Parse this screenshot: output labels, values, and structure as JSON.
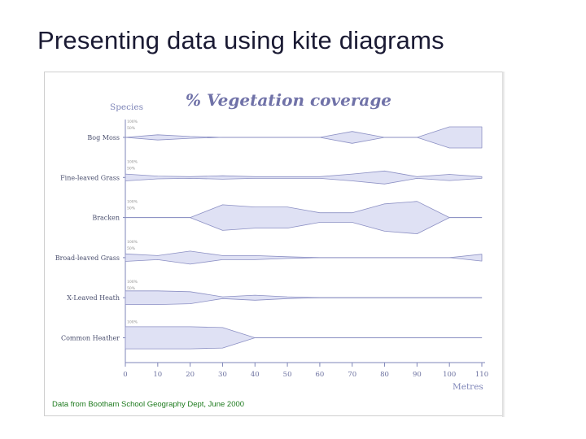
{
  "slide": {
    "title": "Presenting data using kite diagrams",
    "footnote": "Data from Bootham School Geography Dept, June 2000"
  },
  "chart_data": {
    "type": "kite",
    "title": "% Vegetation coverage",
    "ylabel": "Species",
    "xlabel": "Metres",
    "xlim": [
      0,
      110
    ],
    "x": [
      0,
      10,
      20,
      30,
      40,
      50,
      60,
      70,
      80,
      90,
      100,
      110
    ],
    "xticks": [
      "0",
      "10",
      "20",
      "30",
      "40",
      "50",
      "60",
      "70",
      "80",
      "90",
      "100",
      "110"
    ],
    "scale_labels": [
      "100%",
      "50%"
    ],
    "fill_color": "#dfe1f4",
    "edge_color": "#8c90c4",
    "axis_color": "#7f86b8",
    "title_color": "#7072a8",
    "series": [
      {
        "name": "Bog Moss",
        "values": [
          0,
          15,
          5,
          0,
          0,
          0,
          0,
          35,
          0,
          0,
          62,
          62
        ]
      },
      {
        "name": "Fine-leaved Grass",
        "values": [
          20,
          8,
          5,
          10,
          5,
          5,
          5,
          20,
          38,
          5,
          18,
          5
        ]
      },
      {
        "name": "Bracken",
        "values": [
          0,
          0,
          0,
          75,
          62,
          62,
          28,
          28,
          80,
          95,
          0,
          0
        ]
      },
      {
        "name": "Broad-leaved Grass",
        "values": [
          22,
          12,
          38,
          12,
          12,
          5,
          0,
          0,
          0,
          0,
          0,
          20
        ]
      },
      {
        "name": "X-Leaved Heath",
        "values": [
          40,
          40,
          35,
          5,
          15,
          5,
          0,
          0,
          0,
          0,
          0,
          0
        ]
      },
      {
        "name": "Common Heather",
        "values": [
          65,
          65,
          65,
          60,
          0,
          0,
          0,
          0,
          0,
          0,
          0,
          0
        ]
      }
    ]
  }
}
